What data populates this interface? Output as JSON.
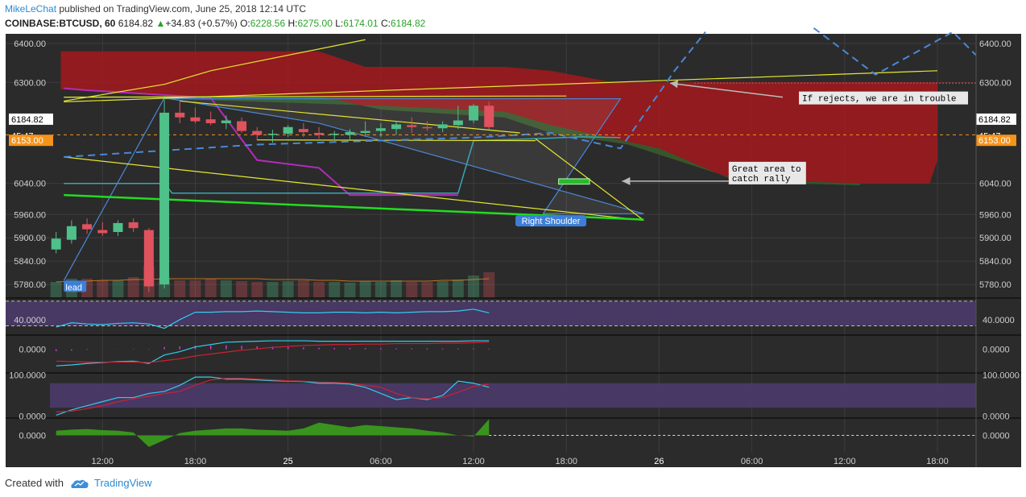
{
  "header": {
    "author": "MikeLeChat",
    "published_text": "published on TradingView.com, June 25, 2018 12:14 UTC",
    "symbol": "COINBASE:BTCUSD, 60",
    "last": "6184.82",
    "change": "+34.83 (+0.57%)",
    "o_label": "O:",
    "o": "6228.56",
    "h_label": "H:",
    "h": "6275.00",
    "l_label": "L:",
    "l": "6174.01",
    "c_label": "C:",
    "c": "6184.82"
  },
  "footer": {
    "created_with": "Created with",
    "brand": "TradingView"
  },
  "colors": {
    "background": "#2b2b2b",
    "grid": "#3d3d3d",
    "up_candle": "#4fc089",
    "down_candle": "#e0525e",
    "cloud_red": "#a3191c",
    "cloud_green": "#2e5d2e",
    "trendline_yellow": "#e6e62e",
    "trendline_blue": "#4a88d6",
    "green_line": "#22dd22",
    "price_tag_orange": "#f7931a",
    "oscillator_band": "#4a3a6a"
  },
  "chart_data": {
    "type": "candlestick",
    "price_ticks": [
      "6400.00",
      "6300.00",
      "6040.00",
      "5960.00",
      "5900.00",
      "5840.00",
      "5780.00"
    ],
    "price_tick_values": [
      6400,
      6300,
      6040,
      5960,
      5900,
      5840,
      5780
    ],
    "time_ticks": [
      "12:00",
      "18:00",
      "25",
      "06:00",
      "12:00",
      "18:00",
      "26",
      "06:00",
      "12:00",
      "18:00"
    ],
    "time_tick_hours": [
      12,
      18,
      24,
      30,
      36,
      42,
      48,
      54,
      60,
      66
    ],
    "x_range_hours": [
      8.6,
      68.5
    ],
    "price_range": [
      5745,
      6425
    ],
    "labels": {
      "current_price": "6184.82",
      "countdown": "45:47",
      "alert_price": "6153.00"
    },
    "alert_value": 6153,
    "candles": [
      {
        "t": 9,
        "o": 5870,
        "h": 5915,
        "l": 5860,
        "c": 5898
      },
      {
        "t": 10,
        "o": 5895,
        "h": 5945,
        "l": 5885,
        "c": 5930
      },
      {
        "t": 11,
        "o": 5935,
        "h": 5950,
        "l": 5910,
        "c": 5922
      },
      {
        "t": 12,
        "o": 5920,
        "h": 5940,
        "l": 5905,
        "c": 5912
      },
      {
        "t": 13,
        "o": 5915,
        "h": 5945,
        "l": 5905,
        "c": 5938
      },
      {
        "t": 14,
        "o": 5940,
        "h": 5950,
        "l": 5915,
        "c": 5925
      },
      {
        "t": 15,
        "o": 5920,
        "h": 5925,
        "l": 5760,
        "c": 5775
      },
      {
        "t": 16,
        "o": 5780,
        "h": 6255,
        "l": 5770,
        "c": 6222
      },
      {
        "t": 17,
        "o": 6222,
        "h": 6250,
        "l": 6195,
        "c": 6210
      },
      {
        "t": 18,
        "o": 6210,
        "h": 6235,
        "l": 6195,
        "c": 6200
      },
      {
        "t": 19,
        "o": 6205,
        "h": 6225,
        "l": 6190,
        "c": 6195
      },
      {
        "t": 20,
        "o": 6195,
        "h": 6215,
        "l": 6180,
        "c": 6202
      },
      {
        "t": 21,
        "o": 6200,
        "h": 6210,
        "l": 6170,
        "c": 6175
      },
      {
        "t": 22,
        "o": 6175,
        "h": 6185,
        "l": 6150,
        "c": 6165
      },
      {
        "t": 23,
        "o": 6165,
        "h": 6178,
        "l": 6145,
        "c": 6168
      },
      {
        "t": 24,
        "o": 6168,
        "h": 6190,
        "l": 6160,
        "c": 6185
      },
      {
        "t": 25,
        "o": 6180,
        "h": 6195,
        "l": 6160,
        "c": 6172
      },
      {
        "t": 26,
        "o": 6170,
        "h": 6185,
        "l": 6155,
        "c": 6165
      },
      {
        "t": 27,
        "o": 6165,
        "h": 6175,
        "l": 6150,
        "c": 6168
      },
      {
        "t": 28,
        "o": 6165,
        "h": 6180,
        "l": 6152,
        "c": 6172
      },
      {
        "t": 29,
        "o": 6170,
        "h": 6200,
        "l": 6160,
        "c": 6175
      },
      {
        "t": 30,
        "o": 6175,
        "h": 6195,
        "l": 6160,
        "c": 6182
      },
      {
        "t": 31,
        "o": 6180,
        "h": 6200,
        "l": 6165,
        "c": 6192
      },
      {
        "t": 32,
        "o": 6190,
        "h": 6210,
        "l": 6170,
        "c": 6185
      },
      {
        "t": 33,
        "o": 6185,
        "h": 6200,
        "l": 6175,
        "c": 6183
      },
      {
        "t": 34,
        "o": 6182,
        "h": 6200,
        "l": 6172,
        "c": 6192
      },
      {
        "t": 35,
        "o": 6190,
        "h": 6240,
        "l": 6180,
        "c": 6202
      },
      {
        "t": 36,
        "o": 6202,
        "h": 6245,
        "l": 6195,
        "c": 6240
      },
      {
        "t": 37,
        "o": 6240,
        "h": 6250,
        "l": 6178,
        "c": 6185
      }
    ],
    "ichimoku_cloud": {
      "red_top": [
        [
          9.3,
          6380
        ],
        [
          26,
          6380
        ],
        [
          29,
          6340
        ],
        [
          38,
          6340
        ],
        [
          41,
          6330
        ],
        [
          45,
          6300
        ],
        [
          66,
          6300
        ]
      ],
      "red_bottom": [
        [
          9.3,
          6282
        ],
        [
          16,
          6265
        ],
        [
          26,
          6265
        ],
        [
          30,
          6230
        ],
        [
          38,
          6210
        ],
        [
          41,
          6170
        ],
        [
          46,
          6140
        ],
        [
          53,
          6050
        ],
        [
          61,
          6040
        ],
        [
          65.5,
          6040
        ],
        [
          66,
          6100
        ]
      ],
      "green_top": [
        [
          16,
          6265
        ],
        [
          26,
          6265
        ],
        [
          30,
          6230
        ],
        [
          38,
          6210
        ],
        [
          41,
          6170
        ],
        [
          46,
          6140
        ],
        [
          53,
          6050
        ],
        [
          61,
          6040
        ]
      ],
      "green_bottom": [
        [
          16,
          6258
        ],
        [
          30,
          6240
        ],
        [
          38,
          6225
        ],
        [
          41,
          6190
        ],
        [
          48,
          6130
        ],
        [
          53,
          6045
        ],
        [
          61,
          6035
        ]
      ]
    },
    "yellow_lines": [
      [
        [
          9.5,
          6252
        ],
        [
          16,
          6295
        ],
        [
          19,
          6330
        ],
        [
          29,
          6410
        ]
      ],
      [
        [
          9.5,
          6250
        ],
        [
          66,
          6330
        ]
      ],
      [
        [
          9.5,
          6262
        ],
        [
          42,
          6265
        ]
      ],
      [
        [
          9.5,
          6108
        ],
        [
          47,
          5945
        ]
      ],
      [
        [
          17,
          6252
        ],
        [
          39,
          6170
        ]
      ],
      [
        [
          22,
          6152
        ],
        [
          40,
          6150
        ]
      ],
      [
        [
          40,
          6155
        ],
        [
          47,
          5945
        ]
      ]
    ],
    "blue_channel": [
      [
        9.5,
        5790
      ],
      [
        16,
        6260
      ],
      [
        26,
        6195
      ],
      [
        47,
        5962
      ],
      [
        40.5,
        5962
      ],
      [
        45.5,
        6258
      ],
      [
        16,
        6258
      ]
    ],
    "blue_wedge": [
      [
        9.5,
        6262
      ],
      [
        16,
        6262
      ]
    ],
    "dashed_projection": [
      [
        9.5,
        6108
      ],
      [
        22,
        6140
      ],
      [
        36,
        6158
      ],
      [
        41,
        6170
      ],
      [
        45.5,
        6130
      ],
      [
        49,
        6330
      ],
      [
        51,
        6430
      ]
    ],
    "dashed_projection2": [
      [
        58,
        6440
      ],
      [
        62,
        6320
      ],
      [
        67,
        6430
      ],
      [
        68.5,
        6370
      ]
    ],
    "green_support": [
      [
        9.5,
        6010
      ],
      [
        47,
        5947
      ]
    ],
    "magenta_line": [
      [
        9.5,
        6285
      ],
      [
        11,
        6280
      ],
      [
        19,
        6260
      ],
      [
        22,
        6100
      ],
      [
        26,
        6080
      ],
      [
        28,
        6010
      ],
      [
        35,
        6010
      ]
    ],
    "teal_line": [
      [
        9.5,
        6040
      ],
      [
        16,
        6040
      ],
      [
        16.5,
        6015
      ],
      [
        35,
        6015
      ],
      [
        36,
        6150
      ],
      [
        40,
        6155
      ],
      [
        43,
        6160
      ],
      [
        45.5,
        6158
      ]
    ],
    "volume": [
      20,
      24,
      24,
      22,
      22,
      26,
      40,
      25,
      22,
      22,
      24,
      22,
      21,
      20,
      20,
      21,
      22,
      20,
      20,
      19,
      21,
      20,
      22,
      20,
      20,
      21,
      23,
      28,
      32
    ],
    "volume_ma": [
      20,
      21,
      21,
      22,
      22,
      23,
      23,
      24,
      24,
      24,
      24,
      24,
      24,
      24,
      23,
      23,
      23,
      22,
      22,
      21,
      21,
      21,
      21,
      21,
      21,
      22,
      22,
      23,
      24
    ],
    "annotations": [
      {
        "text": "Right Shoulder",
        "x": 41,
        "y": 5950
      },
      {
        "text_lines": [
          "Great area to",
          "catch rally"
        ],
        "x": 52.5,
        "y": 6050,
        "target_x": 45.5,
        "target_y": 6050
      },
      {
        "text": "If rejects, we are in trouble",
        "x": 56,
        "y": 6262,
        "target_x": 48.5,
        "target_y": 6298
      },
      {
        "text": "lead",
        "x": 9.6,
        "y": 5765
      }
    ],
    "green_box": {
      "x1": 41.5,
      "x2": 43.5,
      "y1": 6038,
      "y2": 6052
    },
    "red_dotted_level": 6298,
    "orange_dashed_level": 6165,
    "rsi": {
      "ticks": [
        "40.0000"
      ],
      "values": [
        28,
        35,
        33,
        32,
        34,
        35,
        33,
        26,
        40,
        52,
        52,
        53,
        53,
        54,
        53,
        52,
        51,
        51,
        52,
        52,
        51,
        52,
        51,
        52,
        53,
        53,
        54,
        57,
        51
      ],
      "band": [
        30,
        70
      ]
    },
    "macd": {
      "ticks": [
        "0.0000"
      ],
      "line1": [
        -35,
        -33,
        -30,
        -28,
        -26,
        -25,
        -30,
        -12,
        -5,
        5,
        10,
        15,
        16,
        17,
        18,
        18,
        18,
        17,
        17,
        17,
        17,
        17,
        17,
        17,
        17,
        17,
        17,
        18,
        18
      ],
      "line2": [
        -25,
        -26,
        -27,
        -27,
        -27,
        -27,
        -28,
        -24,
        -20,
        -14,
        -10,
        -6,
        -2,
        1,
        4,
        6,
        8,
        9,
        10,
        10,
        11,
        11,
        12,
        12,
        12,
        13,
        13,
        14,
        15
      ],
      "hist": [
        -10,
        -7,
        -3,
        -1,
        1,
        2,
        -2,
        12,
        15,
        19,
        20,
        21,
        18,
        16,
        14,
        12,
        10,
        8,
        7,
        7,
        6,
        6,
        5,
        5,
        5,
        4,
        4,
        4,
        3
      ]
    },
    "stoch": {
      "ticks": [
        "100.0000",
        "0.0000"
      ],
      "k": [
        2,
        15,
        25,
        35,
        45,
        45,
        55,
        60,
        75,
        95,
        95,
        90,
        90,
        88,
        86,
        85,
        84,
        80,
        80,
        78,
        70,
        55,
        40,
        45,
        40,
        50,
        85,
        80,
        70
      ],
      "d": [
        10,
        12,
        18,
        25,
        35,
        42,
        48,
        55,
        60,
        75,
        88,
        92,
        92,
        90,
        88,
        86,
        85,
        83,
        82,
        80,
        75,
        70,
        55,
        45,
        42,
        45,
        58,
        72,
        78
      ],
      "band": [
        20,
        80
      ]
    },
    "momentum": {
      "ticks": [
        "0.0000"
      ],
      "values": [
        8,
        10,
        11,
        9,
        8,
        5,
        -20,
        -8,
        4,
        8,
        10,
        12,
        12,
        10,
        9,
        8,
        12,
        22,
        18,
        14,
        18,
        16,
        14,
        12,
        8,
        5,
        0,
        -2,
        28,
        -15
      ]
    }
  }
}
